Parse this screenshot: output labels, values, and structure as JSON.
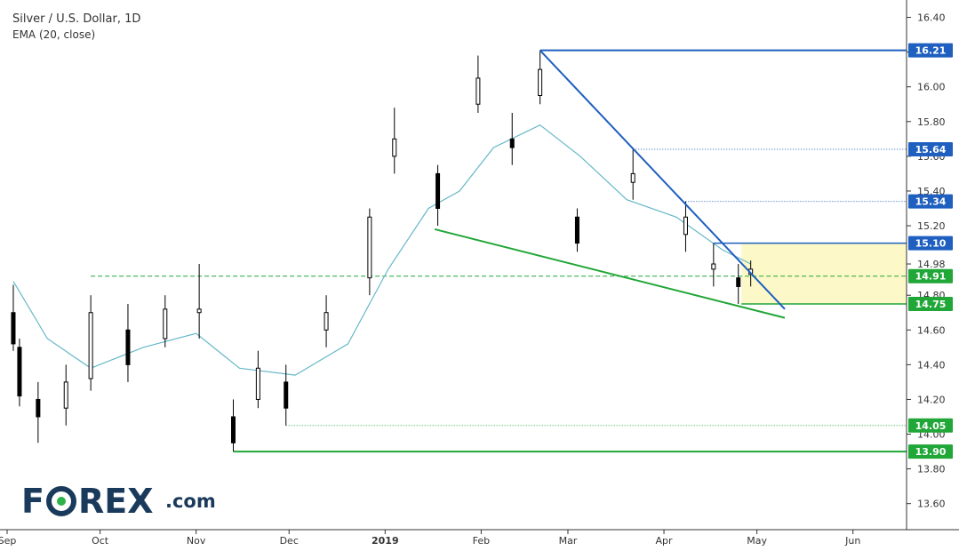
{
  "chart_data": {
    "type": "candlestick",
    "title": "Silver / U.S. Dollar, 1D",
    "subtitle": "EMA (20, close)",
    "x_tick_labels": [
      "Sep",
      "Oct",
      "Nov",
      "Dec",
      "2019",
      "Feb",
      "Mar",
      "Apr",
      "May",
      "Jun"
    ],
    "y_tick_labels": [
      "13.60",
      "13.80",
      "14.00",
      "14.20",
      "14.40",
      "14.60",
      "14.80",
      "14.98",
      "15.20",
      "15.40",
      "15.60",
      "15.80",
      "16.00",
      "16.20",
      "16.40"
    ],
    "ylim": [
      13.45,
      16.5
    ],
    "x_range": [
      "2018-09-01",
      "2019-06-16"
    ],
    "grid": false,
    "colors": {
      "candle": "#000000",
      "ema": "#66b8c8",
      "resistance": "#1f5fbf",
      "support": "#21a638",
      "zone_fill": "#fdf8c8"
    },
    "ohlc_sample": [
      {
        "date": "2018-09-03",
        "o": 14.7,
        "h": 14.86,
        "l": 14.48,
        "c": 14.52
      },
      {
        "date": "2018-09-05",
        "o": 14.5,
        "h": 14.55,
        "l": 14.16,
        "c": 14.22
      },
      {
        "date": "2018-09-11",
        "o": 14.2,
        "h": 14.3,
        "l": 13.95,
        "c": 14.1
      },
      {
        "date": "2018-09-20",
        "o": 14.15,
        "h": 14.4,
        "l": 14.05,
        "c": 14.3
      },
      {
        "date": "2018-09-28",
        "o": 14.32,
        "h": 14.8,
        "l": 14.25,
        "c": 14.7
      },
      {
        "date": "2018-10-10",
        "o": 14.6,
        "h": 14.75,
        "l": 14.3,
        "c": 14.4
      },
      {
        "date": "2018-10-22",
        "o": 14.55,
        "h": 14.8,
        "l": 14.5,
        "c": 14.72
      },
      {
        "date": "2018-11-02",
        "o": 14.7,
        "h": 14.98,
        "l": 14.55,
        "c": 14.72
      },
      {
        "date": "2018-11-13",
        "o": 14.1,
        "h": 14.2,
        "l": 13.9,
        "c": 13.95
      },
      {
        "date": "2018-11-21",
        "o": 14.2,
        "h": 14.48,
        "l": 14.15,
        "c": 14.38
      },
      {
        "date": "2018-11-30",
        "o": 14.3,
        "h": 14.4,
        "l": 14.05,
        "c": 14.15
      },
      {
        "date": "2018-12-13",
        "o": 14.6,
        "h": 14.8,
        "l": 14.5,
        "c": 14.7
      },
      {
        "date": "2018-12-27",
        "o": 14.9,
        "h": 15.3,
        "l": 14.8,
        "c": 15.25
      },
      {
        "date": "2019-01-04",
        "o": 15.6,
        "h": 15.88,
        "l": 15.5,
        "c": 15.7
      },
      {
        "date": "2019-01-18",
        "o": 15.5,
        "h": 15.55,
        "l": 15.2,
        "c": 15.3
      },
      {
        "date": "2019-01-31",
        "o": 15.9,
        "h": 16.18,
        "l": 15.85,
        "c": 16.05
      },
      {
        "date": "2019-02-11",
        "o": 15.7,
        "h": 15.85,
        "l": 15.55,
        "c": 15.65
      },
      {
        "date": "2019-02-20",
        "o": 15.95,
        "h": 16.21,
        "l": 15.9,
        "c": 16.1
      },
      {
        "date": "2019-03-04",
        "o": 15.25,
        "h": 15.3,
        "l": 15.05,
        "c": 15.1
      },
      {
        "date": "2019-03-22",
        "o": 15.45,
        "h": 15.64,
        "l": 15.35,
        "c": 15.5
      },
      {
        "date": "2019-04-08",
        "o": 15.15,
        "h": 15.34,
        "l": 15.05,
        "c": 15.25
      },
      {
        "date": "2019-04-17",
        "o": 14.95,
        "h": 15.1,
        "l": 14.85,
        "c": 14.98
      },
      {
        "date": "2019-04-25",
        "o": 14.9,
        "h": 14.98,
        "l": 14.75,
        "c": 14.85
      },
      {
        "date": "2019-04-29",
        "o": 14.92,
        "h": 15.0,
        "l": 14.85,
        "c": 14.95
      }
    ],
    "ema_sample": [
      {
        "date": "2018-09-03",
        "v": 14.88
      },
      {
        "date": "2018-09-14",
        "v": 14.55
      },
      {
        "date": "2018-09-28",
        "v": 14.38
      },
      {
        "date": "2018-10-15",
        "v": 14.5
      },
      {
        "date": "2018-11-01",
        "v": 14.58
      },
      {
        "date": "2018-11-15",
        "v": 14.38
      },
      {
        "date": "2018-12-03",
        "v": 14.34
      },
      {
        "date": "2018-12-20",
        "v": 14.52
      },
      {
        "date": "2019-01-02",
        "v": 14.95
      },
      {
        "date": "2019-01-15",
        "v": 15.3
      },
      {
        "date": "2019-01-25",
        "v": 15.4
      },
      {
        "date": "2019-02-05",
        "v": 15.65
      },
      {
        "date": "2019-02-20",
        "v": 15.78
      },
      {
        "date": "2019-03-05",
        "v": 15.6
      },
      {
        "date": "2019-03-20",
        "v": 15.35
      },
      {
        "date": "2019-04-05",
        "v": 15.25
      },
      {
        "date": "2019-04-20",
        "v": 15.06
      },
      {
        "date": "2019-04-29",
        "v": 14.98
      }
    ],
    "annotations": {
      "level_labels": [
        {
          "value": 16.21,
          "label": "16.21",
          "color": "blue"
        },
        {
          "value": 15.64,
          "label": "15.64",
          "color": "blue"
        },
        {
          "value": 15.34,
          "label": "15.34",
          "color": "blue"
        },
        {
          "value": 15.1,
          "label": "15.10",
          "color": "blue"
        },
        {
          "value": 14.91,
          "label": "14.91",
          "color": "green"
        },
        {
          "value": 14.75,
          "label": "14.75",
          "color": "green"
        },
        {
          "value": 14.05,
          "label": "14.05",
          "color": "green"
        },
        {
          "value": 13.9,
          "label": "13.90",
          "color": "green"
        }
      ],
      "resistance_trendline": {
        "from": {
          "date": "2019-02-20",
          "value": 16.21
        },
        "to": {
          "date": "2019-05-10",
          "value": 14.72
        }
      },
      "support_trendline": {
        "from": {
          "date": "2019-01-17",
          "value": 15.18
        },
        "to": {
          "date": "2019-05-10",
          "value": 14.67
        }
      },
      "zone": {
        "from_date": "2019-04-26",
        "to_date": "2019-06-16",
        "low": 14.75,
        "high": 15.1
      }
    }
  },
  "logo": {
    "text_part1": "F",
    "text_part2": "REX",
    "suffix": ".com"
  }
}
